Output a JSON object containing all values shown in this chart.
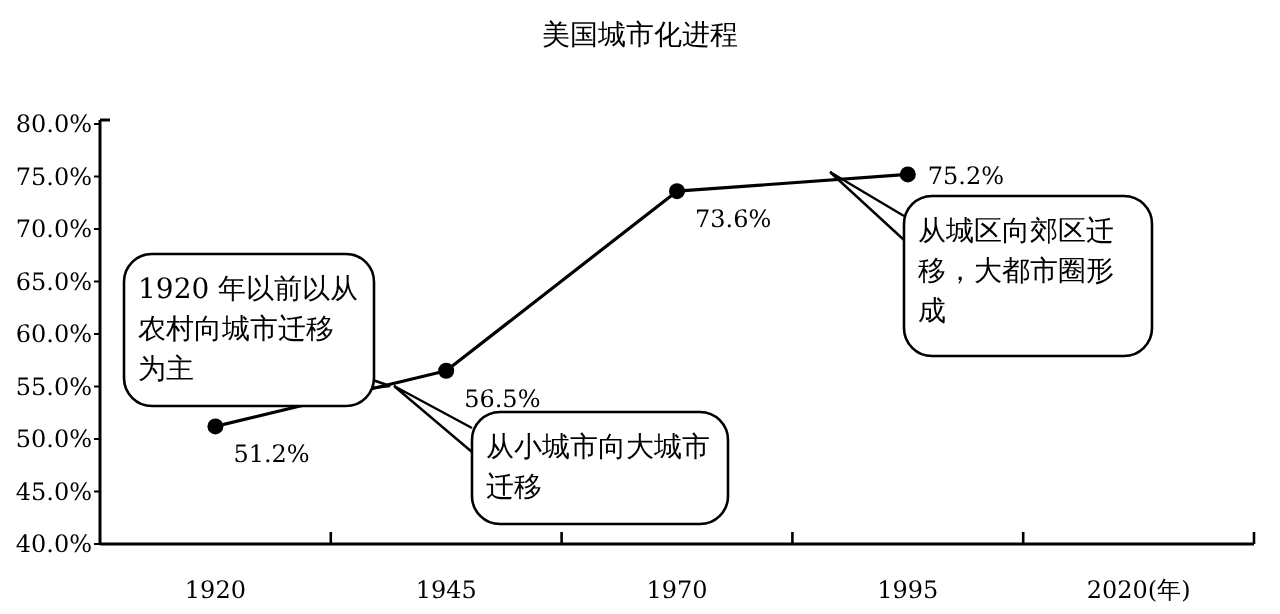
{
  "chart_data": {
    "type": "line",
    "title": "美国城市化进程",
    "categories": [
      "1920",
      "1945",
      "1970",
      "1995",
      "2020(年)"
    ],
    "values": [
      51.2,
      56.5,
      73.6,
      75.2,
      null
    ],
    "value_labels": [
      "51.2%",
      "56.5%",
      "73.6%",
      "75.2%",
      null
    ],
    "color": "#000000",
    "marker": "circle",
    "ylim": [
      40,
      80
    ],
    "yticks": [
      {
        "value": 40,
        "label": "40.0%"
      },
      {
        "value": 45,
        "label": "45.0%"
      },
      {
        "value": 50,
        "label": "50.0%"
      },
      {
        "value": 55,
        "label": "55.0%"
      },
      {
        "value": 60,
        "label": "60.0%"
      },
      {
        "value": 65,
        "label": "65.0%"
      },
      {
        "value": 70,
        "label": "70.0%"
      },
      {
        "value": 75,
        "label": "75.0%"
      },
      {
        "value": 80,
        "label": "80.0%"
      }
    ],
    "annotations": [
      "1920 年以前以从农村向城市迁移为主",
      "从小城市向大城市迁移",
      "从城区向郊区迁移，大都市圈形成"
    ]
  }
}
